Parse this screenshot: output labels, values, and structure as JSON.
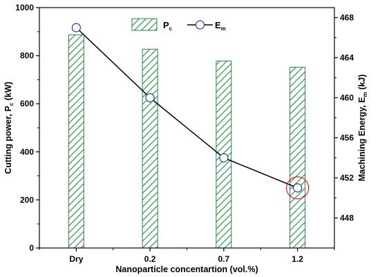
{
  "chart_data": {
    "type": "bar",
    "categories": [
      "Dry",
      "0.2",
      "0.7",
      "1.2"
    ],
    "series": [
      {
        "name": "P",
        "name_sub": "c",
        "axis": "left",
        "kind": "bar",
        "values": [
          887,
          827,
          778,
          752
        ]
      },
      {
        "name": "E",
        "name_sub": "m",
        "axis": "right",
        "kind": "line",
        "values": [
          467.0,
          460.0,
          454.0,
          451.0
        ]
      }
    ],
    "xlabel": "Nanoparticle concentartion (vol.%)",
    "ylabel": {
      "main": "Cutting power, P",
      "sub": "c",
      "unit": " (kW)"
    },
    "y2label": {
      "main": "Machining Energy, E",
      "sub": "m",
      "unit": " (kJ)"
    },
    "ylim": [
      0,
      1000
    ],
    "yticks": [
      0,
      200,
      400,
      600,
      800,
      1000
    ],
    "y2lim": [
      445.0,
      469.0
    ],
    "y2ticks": [
      448,
      452,
      456,
      460,
      464,
      468
    ],
    "grid": false,
    "legend_position": "top-center",
    "highlight": {
      "category": "1.2",
      "color": "#d9252c"
    },
    "colors": {
      "bar_hatch": "#3a9a52",
      "bar_border": "#2f7d44",
      "line": "#000000",
      "marker_fill": "#ffffff",
      "marker_edge": "#2b3a9c"
    }
  }
}
